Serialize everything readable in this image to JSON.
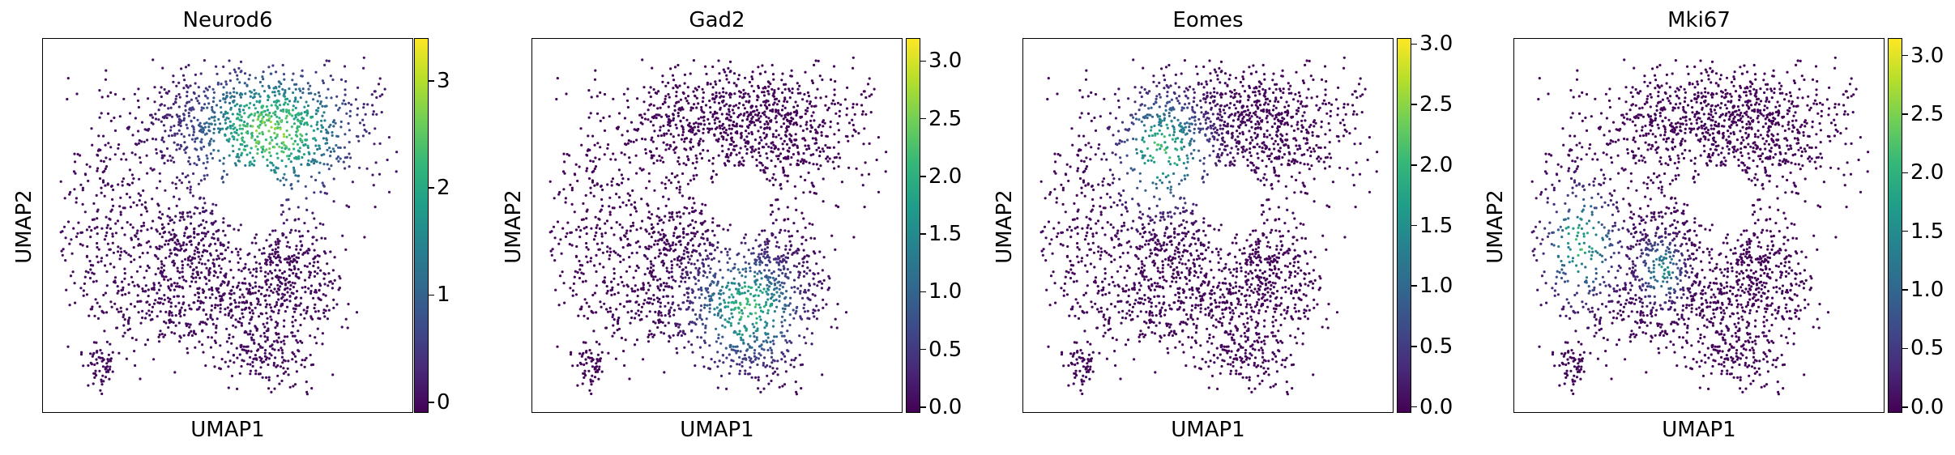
{
  "chart_data": [
    {
      "type": "scatter",
      "title": "Neurod6",
      "xlabel": "UMAP1",
      "ylabel": "UMAP2",
      "colorbar": {
        "min": -0.1,
        "max": 3.4,
        "ticks": [
          {
            "v": 0,
            "label": "0"
          },
          {
            "v": 1,
            "label": "1"
          },
          {
            "v": 2,
            "label": "2"
          },
          {
            "v": 3,
            "label": "3"
          }
        ]
      },
      "colormap": "viridis",
      "high_region": "upper-right",
      "high_level": 2.6
    },
    {
      "type": "scatter",
      "title": "Gad2",
      "xlabel": "UMAP1",
      "ylabel": "UMAP2",
      "colorbar": {
        "min": -0.05,
        "max": 3.2,
        "ticks": [
          {
            "v": 0,
            "label": "0.0"
          },
          {
            "v": 0.5,
            "label": "0.5"
          },
          {
            "v": 1,
            "label": "1.0"
          },
          {
            "v": 1.5,
            "label": "1.5"
          },
          {
            "v": 2,
            "label": "2.0"
          },
          {
            "v": 2.5,
            "label": "2.5"
          },
          {
            "v": 3,
            "label": "3.0"
          }
        ]
      },
      "colormap": "viridis",
      "high_region": "lower-middle",
      "high_level": 2.0
    },
    {
      "type": "scatter",
      "title": "Eomes",
      "xlabel": "UMAP1",
      "ylabel": "UMAP2",
      "colorbar": {
        "min": -0.05,
        "max": 3.05,
        "ticks": [
          {
            "v": 0,
            "label": "0.0"
          },
          {
            "v": 0.5,
            "label": "0.5"
          },
          {
            "v": 1,
            "label": "1.0"
          },
          {
            "v": 1.5,
            "label": "1.5"
          },
          {
            "v": 2,
            "label": "2.0"
          },
          {
            "v": 2.5,
            "label": "2.5"
          },
          {
            "v": 3,
            "label": "3.0"
          }
        ]
      },
      "colormap": "viridis",
      "high_region": "upper-left",
      "high_level": 2.0
    },
    {
      "type": "scatter",
      "title": "Mki67",
      "xlabel": "UMAP1",
      "ylabel": "UMAP2",
      "colorbar": {
        "min": -0.05,
        "max": 3.15,
        "ticks": [
          {
            "v": 0,
            "label": "0.0"
          },
          {
            "v": 0.5,
            "label": "0.5"
          },
          {
            "v": 1,
            "label": "1.0"
          },
          {
            "v": 1.5,
            "label": "1.5"
          },
          {
            "v": 2,
            "label": "2.0"
          },
          {
            "v": 2.5,
            "label": "2.5"
          },
          {
            "v": 3,
            "label": "3.0"
          }
        ]
      },
      "colormap": "viridis",
      "high_region": "left",
      "high_level": 1.9
    }
  ]
}
